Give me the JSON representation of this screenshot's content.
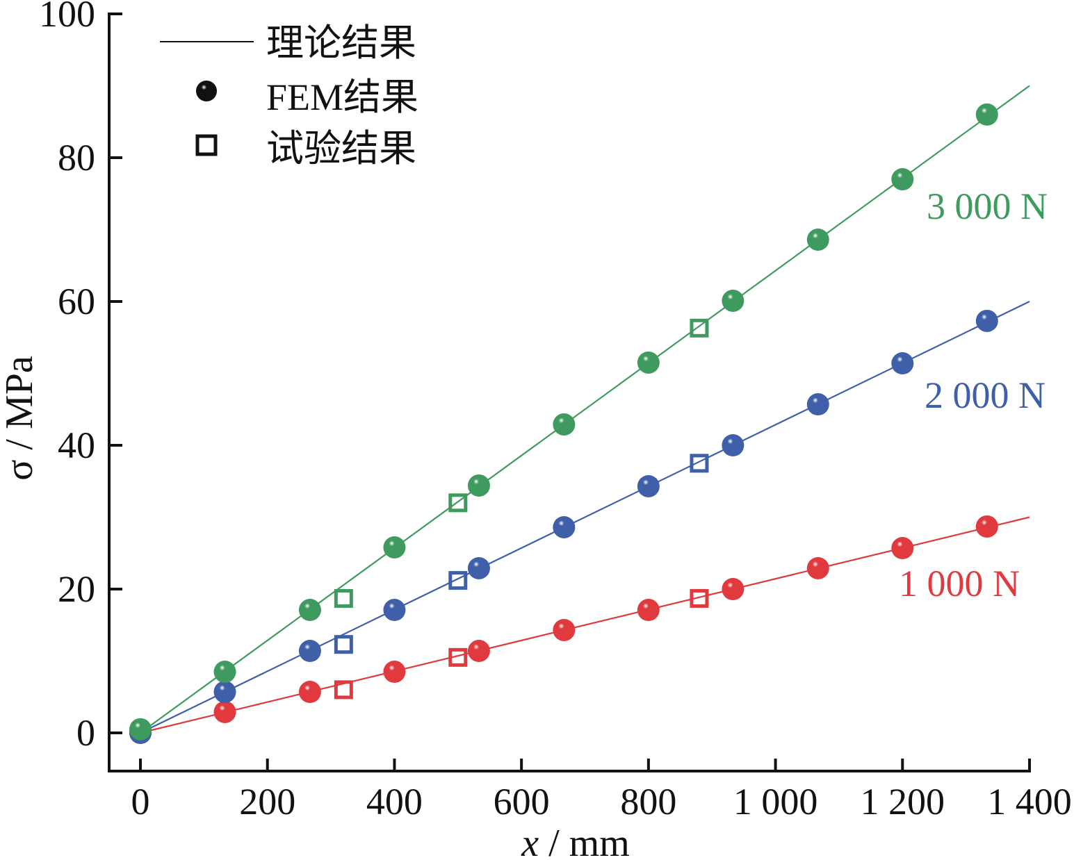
{
  "chart_data": {
    "type": "scatter",
    "xlabel_var": "x",
    "xlabel_unit": " / mm",
    "ylabel": "σ / MPa",
    "xlim": [
      -25,
      1400
    ],
    "ylim": [
      -5,
      100
    ],
    "xticks": [
      0,
      200,
      400,
      600,
      800,
      1000,
      1200,
      1400
    ],
    "xtick_labels": [
      "0",
      "200",
      "400",
      "600",
      "800",
      "1 000",
      "1 200",
      "1 400"
    ],
    "yticks": [
      0,
      20,
      40,
      60,
      80,
      100
    ],
    "ytick_labels": [
      "0",
      "20",
      "40",
      "60",
      "80",
      "100"
    ],
    "grid": false,
    "legend": {
      "placement": "top-left",
      "entries": [
        {
          "marker": "line",
          "label": "理论结果"
        },
        {
          "marker": "sphere",
          "label": "FEM结果"
        },
        {
          "marker": "square",
          "label": "试验结果"
        }
      ]
    },
    "series": [
      {
        "name": "1 000 N",
        "color": "#e0393e",
        "theory_line": {
          "x": [
            0,
            1400
          ],
          "y": [
            0,
            30
          ]
        },
        "fem": {
          "x": [
            0,
            133,
            267,
            400,
            533,
            667,
            800,
            933,
            1067,
            1200,
            1333
          ],
          "y": [
            0,
            2.9,
            5.7,
            8.5,
            11.4,
            14.3,
            17.1,
            20.0,
            22.9,
            25.7,
            28.7
          ]
        },
        "test": {
          "x": [
            320,
            500,
            880
          ],
          "y": [
            6.0,
            10.5,
            18.7
          ]
        }
      },
      {
        "name": "2 000 N",
        "color": "#3f5fa8",
        "theory_line": {
          "x": [
            0,
            1400
          ],
          "y": [
            0,
            60
          ]
        },
        "fem": {
          "x": [
            0,
            133,
            267,
            400,
            533,
            667,
            800,
            933,
            1067,
            1200,
            1333
          ],
          "y": [
            0,
            5.7,
            11.4,
            17.1,
            22.9,
            28.6,
            34.3,
            40.0,
            45.7,
            51.4,
            57.3
          ]
        },
        "test": {
          "x": [
            320,
            500,
            880
          ],
          "y": [
            12.3,
            21.2,
            37.5
          ]
        }
      },
      {
        "name": "3 000 N",
        "color": "#3f9a5f",
        "theory_line": {
          "x": [
            0,
            1400
          ],
          "y": [
            0,
            90
          ]
        },
        "fem": {
          "x": [
            0,
            133,
            267,
            400,
            533,
            667,
            800,
            933,
            1067,
            1200,
            1333
          ],
          "y": [
            0.5,
            8.5,
            17.1,
            25.8,
            34.4,
            42.9,
            51.5,
            60.1,
            68.6,
            77.0,
            86.0
          ]
        },
        "test": {
          "x": [
            320,
            500,
            880
          ],
          "y": [
            18.7,
            32.0,
            56.3
          ]
        }
      }
    ]
  }
}
